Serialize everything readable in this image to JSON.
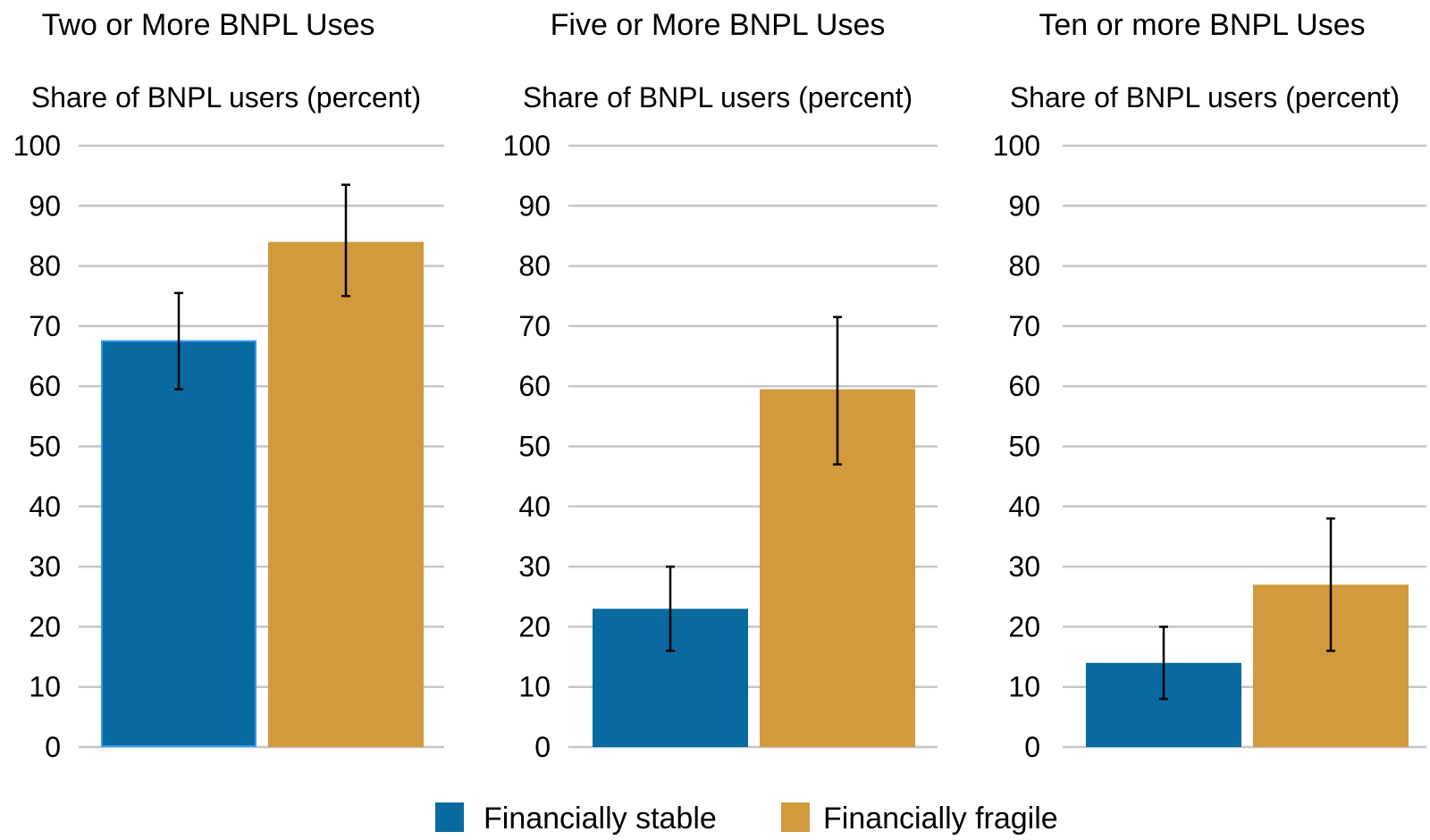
{
  "colors": {
    "stable": "#086A9E",
    "fragile": "#D09A3D",
    "grid": "#C6C6C6",
    "highlight": "#3399FF"
  },
  "legend": {
    "stable_label": "Financially stable",
    "fragile_label": "Financially fragile"
  },
  "chart_data": [
    {
      "type": "bar",
      "title": "Two or More BNPL Uses",
      "ylabel": "Share of BNPL users (percent)",
      "ylim": [
        0,
        100
      ],
      "yticks": [
        0,
        10,
        20,
        30,
        40,
        50,
        60,
        70,
        80,
        90,
        100
      ],
      "grid": true,
      "series": [
        {
          "name": "Financially stable",
          "value": 67.5,
          "error_low": 59.5,
          "error_high": 75.5
        },
        {
          "name": "Financially fragile",
          "value": 84,
          "error_low": 75,
          "error_high": 93.5
        }
      ]
    },
    {
      "type": "bar",
      "title": "Five or More BNPL Uses",
      "ylabel": "Share of BNPL users (percent)",
      "ylim": [
        0,
        100
      ],
      "yticks": [
        0,
        10,
        20,
        30,
        40,
        50,
        60,
        70,
        80,
        90,
        100
      ],
      "grid": true,
      "series": [
        {
          "name": "Financially stable",
          "value": 23,
          "error_low": 16,
          "error_high": 30
        },
        {
          "name": "Financially fragile",
          "value": 59.5,
          "error_low": 47,
          "error_high": 71.5
        }
      ]
    },
    {
      "type": "bar",
      "title": "Ten or more BNPL Uses",
      "ylabel": "Share of BNPL users (percent)",
      "ylim": [
        0,
        100
      ],
      "yticks": [
        0,
        10,
        20,
        30,
        40,
        50,
        60,
        70,
        80,
        90,
        100
      ],
      "grid": true,
      "series": [
        {
          "name": "Financially stable",
          "value": 14,
          "error_low": 8,
          "error_high": 20
        },
        {
          "name": "Financially fragile",
          "value": 27,
          "error_low": 16,
          "error_high": 38
        }
      ]
    }
  ]
}
